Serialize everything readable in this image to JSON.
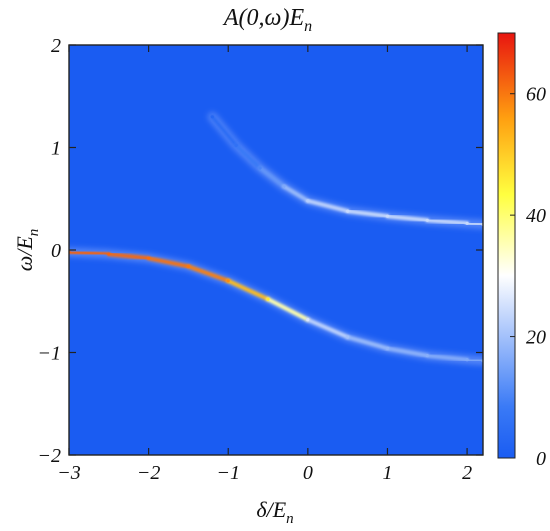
{
  "chart_data": {
    "type": "heatmap",
    "title": "A(0,ω)E",
    "title_subscript": "n",
    "xlabel": "δ/E",
    "xlabel_subscript": "n",
    "ylabel": "ω/E",
    "ylabel_subscript": "n",
    "xlim": [
      -3,
      2.2
    ],
    "ylim": [
      -2,
      2
    ],
    "x_ticks": [
      -3,
      -2,
      -1,
      0,
      1,
      2
    ],
    "x_tick_labels": [
      "−3",
      "−2",
      "−1",
      "0",
      "1",
      "2"
    ],
    "y_ticks": [
      -2,
      -1,
      0,
      1,
      2
    ],
    "y_tick_labels": [
      "−2",
      "−1",
      "0",
      "1",
      "2"
    ],
    "colorbar": {
      "range": [
        0,
        70
      ],
      "ticks": [
        0,
        20,
        40,
        60
      ],
      "tick_labels": [
        "0",
        "20",
        "40",
        "60"
      ],
      "colors": [
        "#1a5cf2",
        "#3a7af6",
        "#ffffff",
        "#ffff40",
        "#ff9f10",
        "#e81510"
      ]
    },
    "background_color": "#1a5cf2",
    "series": [
      {
        "x": [
          -3.0,
          -2.5,
          -2.0,
          -1.5,
          -1.0,
          -0.5,
          0.0,
          0.5,
          1.0,
          1.5,
          2.0,
          2.2
        ],
        "y": [
          -0.02,
          -0.04,
          -0.08,
          -0.16,
          -0.3,
          -0.48,
          -0.68,
          -0.85,
          -0.96,
          -1.03,
          -1.07,
          -1.08
        ],
        "peak": [
          62,
          62,
          61,
          60,
          58,
          46,
          26,
          20,
          18,
          17,
          16,
          16
        ]
      },
      {
        "x": [
          -1.2,
          -0.9,
          -0.6,
          -0.3,
          0.0,
          0.5,
          1.0,
          1.5,
          2.0,
          2.2
        ],
        "y": [
          1.3,
          1.02,
          0.8,
          0.62,
          0.48,
          0.38,
          0.33,
          0.29,
          0.26,
          0.25
        ],
        "peak": [
          3,
          6,
          10,
          16,
          22,
          24,
          24,
          24,
          24,
          24
        ]
      }
    ]
  }
}
